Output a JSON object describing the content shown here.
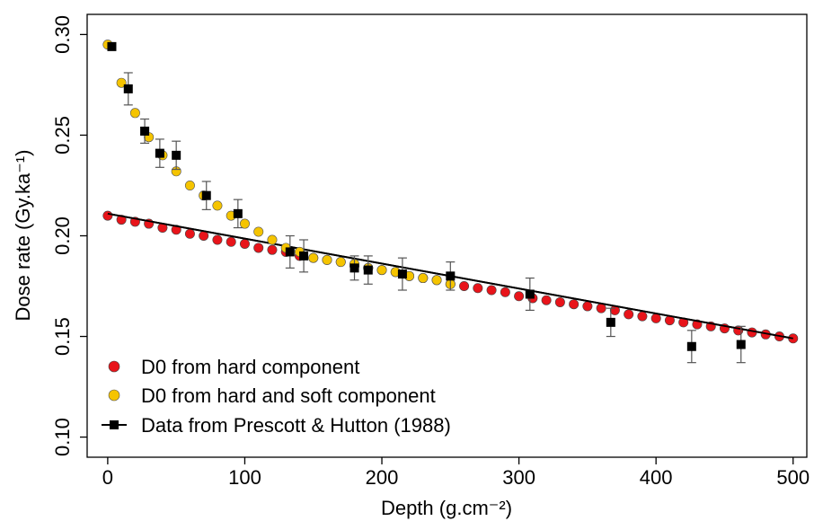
{
  "chart_data": {
    "type": "scatter",
    "xlabel": "Depth (g.cm⁻²)",
    "ylabel": "Dose rate (Gy.ka⁻¹)",
    "xlim": [
      -15,
      510
    ],
    "ylim": [
      0.09,
      0.31
    ],
    "x_ticks": [
      0,
      100,
      200,
      300,
      400,
      500
    ],
    "y_ticks": [
      0.1,
      0.15,
      0.2,
      0.25,
      0.3
    ],
    "x_tick_labels": [
      "0",
      "100",
      "200",
      "300",
      "400",
      "500"
    ],
    "y_tick_labels": [
      "0.10",
      "0.15",
      "0.20",
      "0.25",
      "0.30"
    ],
    "legend_position": "bottom-left",
    "grid": false,
    "series": [
      {
        "name": "D0 from hard component",
        "color": "#e8141a",
        "marker": "circle",
        "x": [
          0,
          10,
          20,
          30,
          40,
          50,
          60,
          70,
          80,
          90,
          100,
          110,
          120,
          130,
          140,
          150,
          160,
          170,
          180,
          190,
          200,
          210,
          220,
          230,
          240,
          250,
          260,
          270,
          280,
          290,
          300,
          310,
          320,
          330,
          340,
          350,
          360,
          370,
          380,
          390,
          400,
          410,
          420,
          430,
          440,
          450,
          460,
          470,
          480,
          490,
          500
        ],
        "y": [
          0.21,
          0.208,
          0.207,
          0.206,
          0.204,
          0.203,
          0.201,
          0.2,
          0.198,
          0.197,
          0.196,
          0.194,
          0.193,
          0.192,
          0.19,
          0.189,
          0.188,
          0.187,
          0.185,
          0.184,
          0.183,
          0.182,
          0.18,
          0.179,
          0.178,
          0.176,
          0.175,
          0.174,
          0.173,
          0.172,
          0.17,
          0.169,
          0.168,
          0.167,
          0.166,
          0.165,
          0.164,
          0.163,
          0.161,
          0.16,
          0.159,
          0.158,
          0.157,
          0.156,
          0.155,
          0.154,
          0.153,
          0.152,
          0.151,
          0.15,
          0.149
        ]
      },
      {
        "name": "D0 from hard and soft component",
        "color": "#f5c400",
        "marker": "circle",
        "x": [
          0,
          10,
          20,
          30,
          40,
          50,
          60,
          70,
          80,
          90,
          100,
          110,
          120,
          130,
          140,
          150,
          160,
          170,
          180,
          190,
          200,
          210,
          220,
          230,
          240,
          250
        ],
        "y": [
          0.295,
          0.276,
          0.261,
          0.249,
          0.24,
          0.232,
          0.225,
          0.22,
          0.215,
          0.21,
          0.206,
          0.202,
          0.198,
          0.194,
          0.192,
          0.189,
          0.188,
          0.187,
          0.186,
          0.184,
          0.183,
          0.182,
          0.18,
          0.179,
          0.178,
          0.176
        ]
      },
      {
        "name": "Data from Prescott & Hutton (1988)",
        "color": "#000000",
        "marker": "square",
        "x": [
          3,
          15,
          27,
          38,
          50,
          72,
          95,
          133,
          143,
          180,
          190,
          215,
          250,
          308,
          367,
          426,
          462
        ],
        "y": [
          0.294,
          0.273,
          0.252,
          0.241,
          0.24,
          0.22,
          0.211,
          0.192,
          0.19,
          0.184,
          0.183,
          0.181,
          0.18,
          0.171,
          0.157,
          0.145,
          0.146
        ],
        "err": [
          0,
          0.008,
          0.006,
          0.007,
          0.007,
          0.007,
          0.007,
          0.008,
          0.008,
          0.006,
          0.007,
          0.008,
          0.007,
          0.008,
          0.007,
          0.008,
          0.009
        ]
      }
    ],
    "fit_line": {
      "color": "#000000",
      "x": [
        0,
        500
      ],
      "y": [
        0.211,
        0.149
      ]
    }
  }
}
